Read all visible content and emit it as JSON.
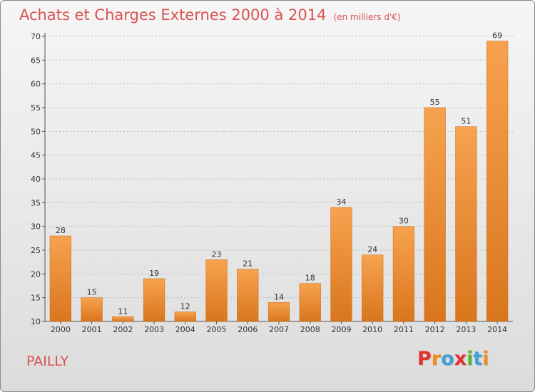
{
  "header": {
    "title": "Achats et Charges Externes 2000 à 2014",
    "subtitle": "(en milliers d'€)"
  },
  "footer": {
    "commune": "PAILLY",
    "logo": [
      "P",
      "r",
      "o",
      "x",
      "i",
      "t",
      "i"
    ]
  },
  "colors": {
    "bar_light": "#f7a24f",
    "bar_dark": "#d9761d",
    "title": "#d9534f",
    "logo": [
      "#e1312d",
      "#f08a1c",
      "#3f9fd8",
      "#e1312d",
      "#5bb131",
      "#3f9fd8",
      "#f08a1c"
    ]
  },
  "chart_data": {
    "type": "bar",
    "title": "Achats et Charges Externes 2000 à 2014",
    "subtitle": "(en milliers d'€)",
    "xlabel": "",
    "ylabel": "",
    "categories": [
      "2000",
      "2001",
      "2002",
      "2003",
      "2004",
      "2005",
      "2006",
      "2007",
      "2008",
      "2009",
      "2010",
      "2011",
      "2012",
      "2013",
      "2014"
    ],
    "values": [
      28,
      15,
      11,
      19,
      12,
      23,
      21,
      14,
      18,
      34,
      24,
      30,
      55,
      51,
      69
    ],
    "ylim": [
      10,
      70
    ],
    "yticks": [
      10,
      15,
      20,
      25,
      30,
      35,
      40,
      45,
      50,
      55,
      60,
      65,
      70
    ],
    "grid": true,
    "data_labels": true
  }
}
